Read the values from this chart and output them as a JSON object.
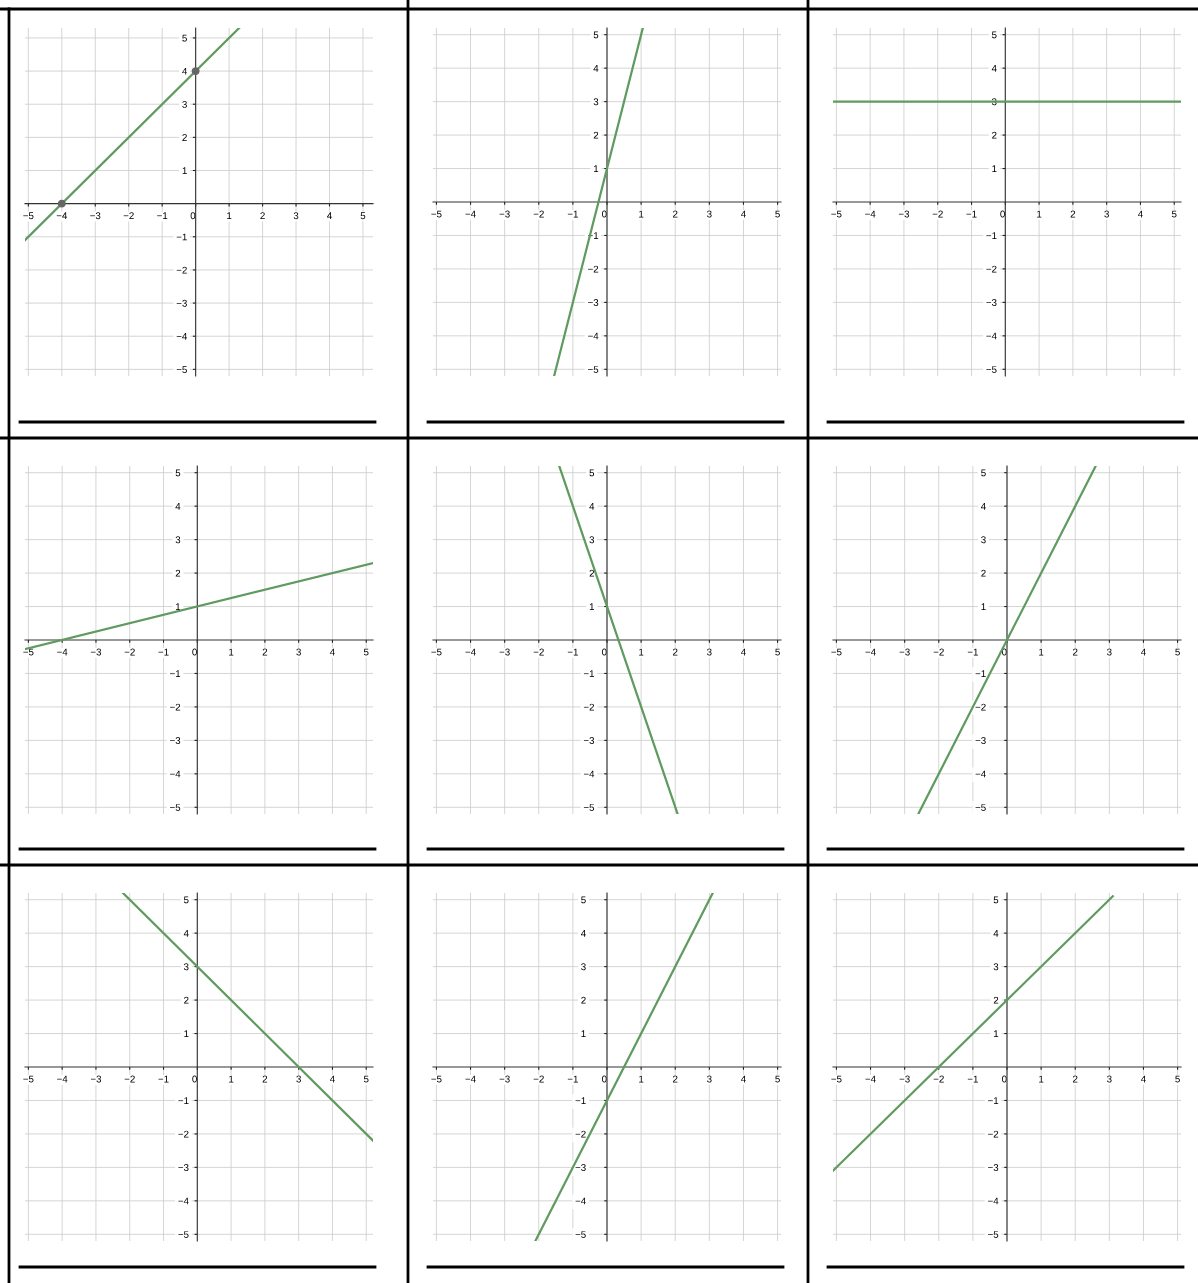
{
  "chart_data": [
    {
      "type": "line",
      "series": [
        {
          "color": "#5f9a5f",
          "x": [
            -5.1,
            1.3
          ],
          "values": [
            -1.1,
            5.3
          ]
        },
        {
          "type": "scatter",
          "color": "#666666",
          "marker": "circle",
          "x": [
            -4,
            0
          ],
          "values": [
            0,
            4
          ]
        }
      ],
      "xlim": [
        -5.1,
        5.3
      ],
      "ylim": [
        -5.2,
        5.3
      ],
      "xticks": [
        {
          "value": -5,
          "label": "−5"
        },
        {
          "value": -4,
          "label": "−4"
        },
        {
          "value": -3,
          "label": "−3"
        },
        {
          "value": -2,
          "label": "−2"
        },
        {
          "value": -1,
          "label": "−1"
        },
        0,
        1,
        2,
        3,
        4,
        5
      ],
      "yticks": [
        {
          "value": -5,
          "label": "−5"
        },
        {
          "value": -4,
          "label": "−4"
        },
        {
          "value": -3,
          "label": "−3"
        },
        {
          "value": -2,
          "label": "−2"
        },
        {
          "value": -1,
          "label": "−1"
        },
        1,
        2,
        3,
        4,
        5
      ],
      "grid": true
    },
    {
      "type": "line",
      "series": [
        {
          "color": "#5f9a5f",
          "x": [
            -1.55,
            1.05
          ],
          "values": [
            -5.2,
            5.2
          ]
        }
      ],
      "xlim": [
        -5.1,
        5.1
      ],
      "ylim": [
        -5.2,
        5.2
      ],
      "xticks": [
        {
          "value": -5,
          "label": "−5"
        },
        {
          "value": -4,
          "label": "−4"
        },
        {
          "value": -3,
          "label": "−3"
        },
        {
          "value": -2,
          "label": "−2"
        },
        {
          "value": -1,
          "label": "−1"
        },
        0,
        1,
        2,
        3,
        4,
        5
      ],
      "yticks": [
        {
          "value": -5,
          "label": "−5"
        },
        {
          "value": -4,
          "label": "−4"
        },
        {
          "value": -3,
          "label": "−3"
        },
        {
          "value": -2,
          "label": "−2"
        },
        {
          "value": -1,
          "label": "−1"
        },
        1,
        2,
        3,
        4,
        5
      ],
      "grid": true
    },
    {
      "type": "line",
      "series": [
        {
          "color": "#5f9a5f",
          "x": [
            -5.1,
            5.2
          ],
          "values": [
            3,
            3
          ]
        }
      ],
      "xlim": [
        -5.1,
        5.2
      ],
      "ylim": [
        -5.2,
        5.2
      ],
      "xticks": [
        {
          "value": -5,
          "label": "−5"
        },
        {
          "value": -4,
          "label": "−4"
        },
        {
          "value": -3,
          "label": "−3"
        },
        {
          "value": -2,
          "label": "−2"
        },
        {
          "value": -1,
          "label": "−1"
        },
        0,
        1,
        2,
        3,
        4,
        5
      ],
      "yticks": [
        {
          "value": -5,
          "label": "−5"
        },
        {
          "value": -4,
          "label": "−4"
        },
        {
          "value": -3,
          "label": "−3"
        },
        {
          "value": -2,
          "label": "−2"
        },
        {
          "value": -1,
          "label": "−1"
        },
        1,
        2,
        3,
        4,
        5
      ],
      "grid": true
    },
    {
      "type": "line",
      "series": [
        {
          "color": "#5f9a5f",
          "x": [
            -5.1,
            5.2
          ],
          "values": [
            -0.27,
            2.3
          ]
        }
      ],
      "xlim": [
        -5.1,
        5.2
      ],
      "ylim": [
        -5.2,
        5.2
      ],
      "xticks": [
        {
          "value": -5,
          "label": "−5"
        },
        {
          "value": -4,
          "label": "−4"
        },
        {
          "value": -3,
          "label": "−3"
        },
        {
          "value": -2,
          "label": "−2"
        },
        {
          "value": -1,
          "label": "−1"
        },
        0,
        1,
        2,
        3,
        4,
        5
      ],
      "yticks": [
        {
          "value": -5,
          "label": "−5"
        },
        {
          "value": -4,
          "label": "−4"
        },
        {
          "value": -3,
          "label": "−3"
        },
        {
          "value": -2,
          "label": "−2"
        },
        {
          "value": -1,
          "label": "−1"
        },
        1,
        2,
        3,
        4,
        5
      ],
      "grid": true
    },
    {
      "type": "line",
      "series": [
        {
          "color": "#5f9a5f",
          "x": [
            -1.4,
            2.07
          ],
          "values": [
            5.2,
            -5.2
          ]
        }
      ],
      "xlim": [
        -5.1,
        5.1
      ],
      "ylim": [
        -5.2,
        5.2
      ],
      "xticks": [
        {
          "value": -5,
          "label": "−5"
        },
        {
          "value": -4,
          "label": "−4"
        },
        {
          "value": -3,
          "label": "−3"
        },
        {
          "value": -2,
          "label": "−2"
        },
        {
          "value": -1,
          "label": "−1"
        },
        0,
        1,
        2,
        3,
        4,
        5
      ],
      "yticks": [
        {
          "value": -5,
          "label": "−5"
        },
        {
          "value": -4,
          "label": "−4"
        },
        {
          "value": -3,
          "label": "−3"
        },
        {
          "value": -2,
          "label": "−2"
        },
        {
          "value": -1,
          "label": "−1"
        },
        1,
        2,
        3,
        4,
        5
      ],
      "grid": true
    },
    {
      "type": "line",
      "series": [
        {
          "color": "#5f9a5f",
          "x": [
            -2.6,
            2.6
          ],
          "values": [
            -5.2,
            5.2
          ]
        }
      ],
      "xlim": [
        -5.1,
        5.1
      ],
      "ylim": [
        -5.2,
        5.2
      ],
      "xticks": [
        {
          "value": -5,
          "label": "−5"
        },
        {
          "value": -4,
          "label": "−4"
        },
        {
          "value": -3,
          "label": "−3"
        },
        {
          "value": -2,
          "label": "−2"
        },
        {
          "value": -1,
          "label": "−1"
        },
        0,
        1,
        2,
        3,
        4,
        5
      ],
      "yticks": [
        {
          "value": -5,
          "label": "−5"
        },
        {
          "value": -4,
          "label": "−4"
        },
        {
          "value": -3,
          "label": "−3"
        },
        {
          "value": -2,
          "label": "−2"
        },
        {
          "value": -1,
          "label": "−1"
        },
        1,
        2,
        3,
        4,
        5
      ],
      "grid": true
    },
    {
      "type": "line",
      "series": [
        {
          "color": "#5f9a5f",
          "x": [
            -2.2,
            5.2
          ],
          "values": [
            5.2,
            -2.2
          ]
        }
      ],
      "xlim": [
        -5.1,
        5.2
      ],
      "ylim": [
        -5.2,
        5.2
      ],
      "xticks": [
        {
          "value": -5,
          "label": "−5"
        },
        {
          "value": -4,
          "label": "−4"
        },
        {
          "value": -3,
          "label": "−3"
        },
        {
          "value": -2,
          "label": "−2"
        },
        {
          "value": -1,
          "label": "−1"
        },
        0,
        1,
        2,
        3,
        4,
        5
      ],
      "yticks": [
        {
          "value": -5,
          "label": "−5"
        },
        {
          "value": -4,
          "label": "−4"
        },
        {
          "value": -3,
          "label": "−3"
        },
        {
          "value": -2,
          "label": "−2"
        },
        {
          "value": -1,
          "label": "−1"
        },
        1,
        2,
        3,
        4,
        5
      ],
      "grid": true
    },
    {
      "type": "line",
      "series": [
        {
          "color": "#5f9a5f",
          "x": [
            -2.1,
            3.1
          ],
          "values": [
            -5.2,
            5.2
          ]
        }
      ],
      "xlim": [
        -5.1,
        5.1
      ],
      "ylim": [
        -5.2,
        5.2
      ],
      "xticks": [
        {
          "value": -5,
          "label": "−5"
        },
        {
          "value": -4,
          "label": "−4"
        },
        {
          "value": -3,
          "label": "−3"
        },
        {
          "value": -2,
          "label": "−2"
        },
        {
          "value": -1,
          "label": "−1"
        },
        0,
        1,
        2,
        3,
        4,
        5
      ],
      "yticks": [
        {
          "value": -5,
          "label": "−5"
        },
        {
          "value": -4,
          "label": "−4"
        },
        {
          "value": -3,
          "label": "−3"
        },
        {
          "value": -2,
          "label": "−2"
        },
        {
          "value": -1,
          "label": "−1"
        },
        1,
        2,
        3,
        4,
        5
      ],
      "grid": true
    },
    {
      "type": "line",
      "series": [
        {
          "color": "#5f9a5f",
          "x": [
            -5.1,
            3.1
          ],
          "values": [
            -3.1,
            5.1
          ]
        }
      ],
      "xlim": [
        -5.1,
        5.1
      ],
      "ylim": [
        -5.2,
        5.2
      ],
      "xticks": [
        {
          "value": -5,
          "label": "−5"
        },
        {
          "value": -4,
          "label": "−4"
        },
        {
          "value": -3,
          "label": "−3"
        },
        {
          "value": -2,
          "label": "−2"
        },
        {
          "value": -1,
          "label": "−1"
        },
        0,
        1,
        2,
        3,
        4,
        5
      ],
      "yticks": [
        {
          "value": -5,
          "label": "−5"
        },
        {
          "value": -4,
          "label": "−4"
        },
        {
          "value": -3,
          "label": "−3"
        },
        {
          "value": -2,
          "label": "−2"
        },
        {
          "value": -1,
          "label": "−1"
        },
        1,
        2,
        3,
        4,
        5
      ],
      "grid": true
    }
  ]
}
